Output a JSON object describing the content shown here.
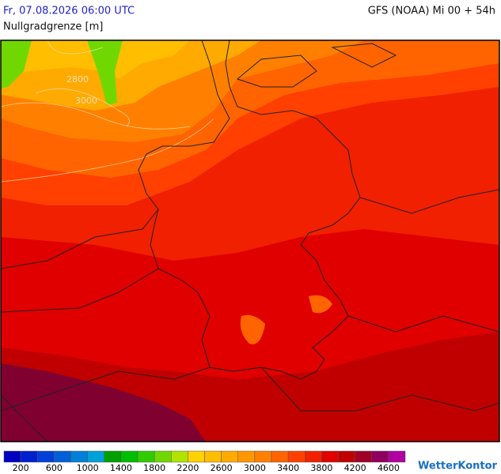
{
  "header": {
    "valid_time": "Fr, 07.08.2026 06:00 UTC",
    "model_run": "GFS (NOAA) Mi 00 + 54h",
    "parameter": "Nullgradgrenze [m]"
  },
  "map": {
    "contour_labels": [
      "2800",
      "3000"
    ]
  },
  "legend": {
    "colors": [
      "#0000c0",
      "#0020d0",
      "#0040d8",
      "#0060d8",
      "#0080d8",
      "#00a0d8",
      "#00a000",
      "#00be00",
      "#30cc00",
      "#70d800",
      "#b0e400",
      "#ffd200",
      "#ffbe00",
      "#ffaa00",
      "#ff9600",
      "#ff8000",
      "#ff6400",
      "#ff4000",
      "#f02000",
      "#e00000",
      "#c00000",
      "#a00028",
      "#900060",
      "#b000a0"
    ],
    "labels": [
      "200",
      "600",
      "1000",
      "1400",
      "1800",
      "2200",
      "2600",
      "3000",
      "3400",
      "3800",
      "4200",
      "4600"
    ]
  },
  "logo": "WetterKontor"
}
